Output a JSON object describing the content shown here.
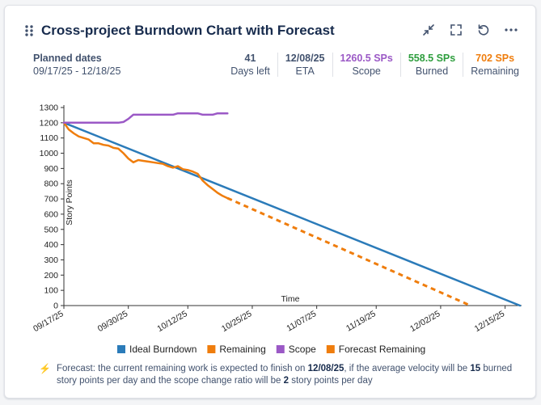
{
  "header": {
    "title": "Cross-project Burndown Chart with Forecast",
    "actions": [
      "collapse-icon",
      "fullscreen-icon",
      "refresh-icon",
      "more-icon"
    ]
  },
  "planned": {
    "label": "Planned dates",
    "range": "09/17/25 - 12/18/25"
  },
  "stats": [
    {
      "value": "41",
      "label": "Days left",
      "color": "#42526e"
    },
    {
      "value": "12/08/25",
      "label": "ETA",
      "color": "#42526e"
    },
    {
      "value": "1260.5 SPs",
      "label": "Scope",
      "color": "#9b59c6"
    },
    {
      "value": "558.5 SPs",
      "label": "Burned",
      "color": "#2e9e3e"
    },
    {
      "value": "702 SPs",
      "label": "Remaining",
      "color": "#ef7d0d"
    }
  ],
  "chart_data": {
    "type": "line",
    "title": "",
    "xlabel": "Time",
    "ylabel": "Story Points",
    "ylim": [
      0,
      1300
    ],
    "yticks": [
      0,
      100,
      200,
      300,
      400,
      500,
      600,
      700,
      800,
      900,
      1000,
      1100,
      1200,
      1300
    ],
    "xlim_days": [
      0,
      92
    ],
    "xticks": [
      {
        "day": 0,
        "label": "09/17/25"
      },
      {
        "day": 13,
        "label": "09/30/25"
      },
      {
        "day": 25,
        "label": "10/12/25"
      },
      {
        "day": 38,
        "label": "10/25/25"
      },
      {
        "day": 51,
        "label": "11/07/25"
      },
      {
        "day": 63,
        "label": "11/19/25"
      },
      {
        "day": 76,
        "label": "12/02/25"
      },
      {
        "day": 89,
        "label": "12/15/25"
      }
    ],
    "legend_position": "bottom",
    "series": [
      {
        "name": "Ideal Burndown",
        "color": "#2b7bb9",
        "dash": false,
        "x": [
          0,
          92
        ],
        "y": [
          1200,
          0
        ]
      },
      {
        "name": "Remaining",
        "color": "#ef7d0d",
        "dash": false,
        "x": [
          0,
          1,
          2,
          3,
          4,
          5,
          6,
          7,
          8,
          9,
          10,
          11,
          12,
          13,
          14,
          15,
          16,
          17,
          18,
          19,
          20,
          21,
          22,
          23,
          24,
          25,
          26,
          27,
          28,
          29,
          30,
          31,
          32,
          33
        ],
        "y": [
          1200,
          1155,
          1130,
          1110,
          1100,
          1090,
          1065,
          1065,
          1055,
          1050,
          1035,
          1030,
          1000,
          965,
          940,
          955,
          950,
          945,
          940,
          935,
          930,
          915,
          905,
          915,
          895,
          890,
          880,
          865,
          820,
          790,
          765,
          740,
          720,
          705
        ]
      },
      {
        "name": "Scope",
        "color": "#9b59c6",
        "dash": false,
        "x": [
          0,
          1,
          2,
          4,
          6,
          8,
          10,
          11,
          12,
          13,
          14,
          15,
          16,
          17,
          20,
          22,
          23,
          26,
          27,
          28,
          30,
          31,
          32,
          33
        ],
        "y": [
          1200,
          1200,
          1200,
          1200,
          1200,
          1200,
          1200,
          1200,
          1205,
          1225,
          1253,
          1253,
          1253,
          1253,
          1253,
          1253,
          1262,
          1262,
          1262,
          1253,
          1253,
          1262,
          1262,
          1262
        ]
      },
      {
        "name": "Forecast Remaining",
        "color": "#ef7d0d",
        "dash": true,
        "x": [
          33,
          82
        ],
        "y": [
          705,
          0
        ]
      }
    ]
  },
  "footnote": {
    "prefix": "Forecast: the current remaining work is expected to finish on ",
    "eta": "12/08/25",
    "mid1": ", if the average velocity will be ",
    "velocity": "15",
    "mid2": " burned story points per day and the scope change ratio will be ",
    "scope_ratio": "2",
    "suffix": " story points per day"
  }
}
